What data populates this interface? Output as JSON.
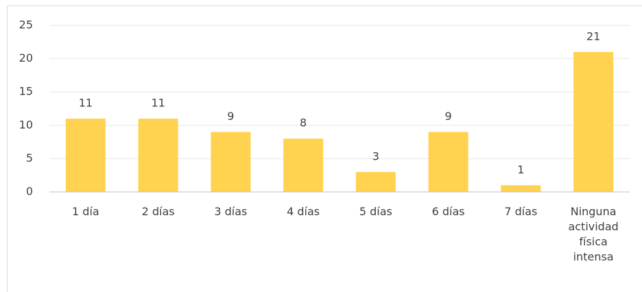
{
  "chart_data": {
    "type": "bar",
    "categories": [
      "1 día",
      "2 días",
      "3 días",
      "4 días",
      "5 días",
      "6 días",
      "7 días",
      "Ninguna actividad física intensa"
    ],
    "values": [
      11,
      11,
      9,
      8,
      3,
      9,
      1,
      21
    ],
    "color": "#ffd34f",
    "ylim": [
      0,
      25
    ],
    "yticks": [
      0,
      5,
      10,
      15,
      20,
      25
    ],
    "grid": true
  }
}
